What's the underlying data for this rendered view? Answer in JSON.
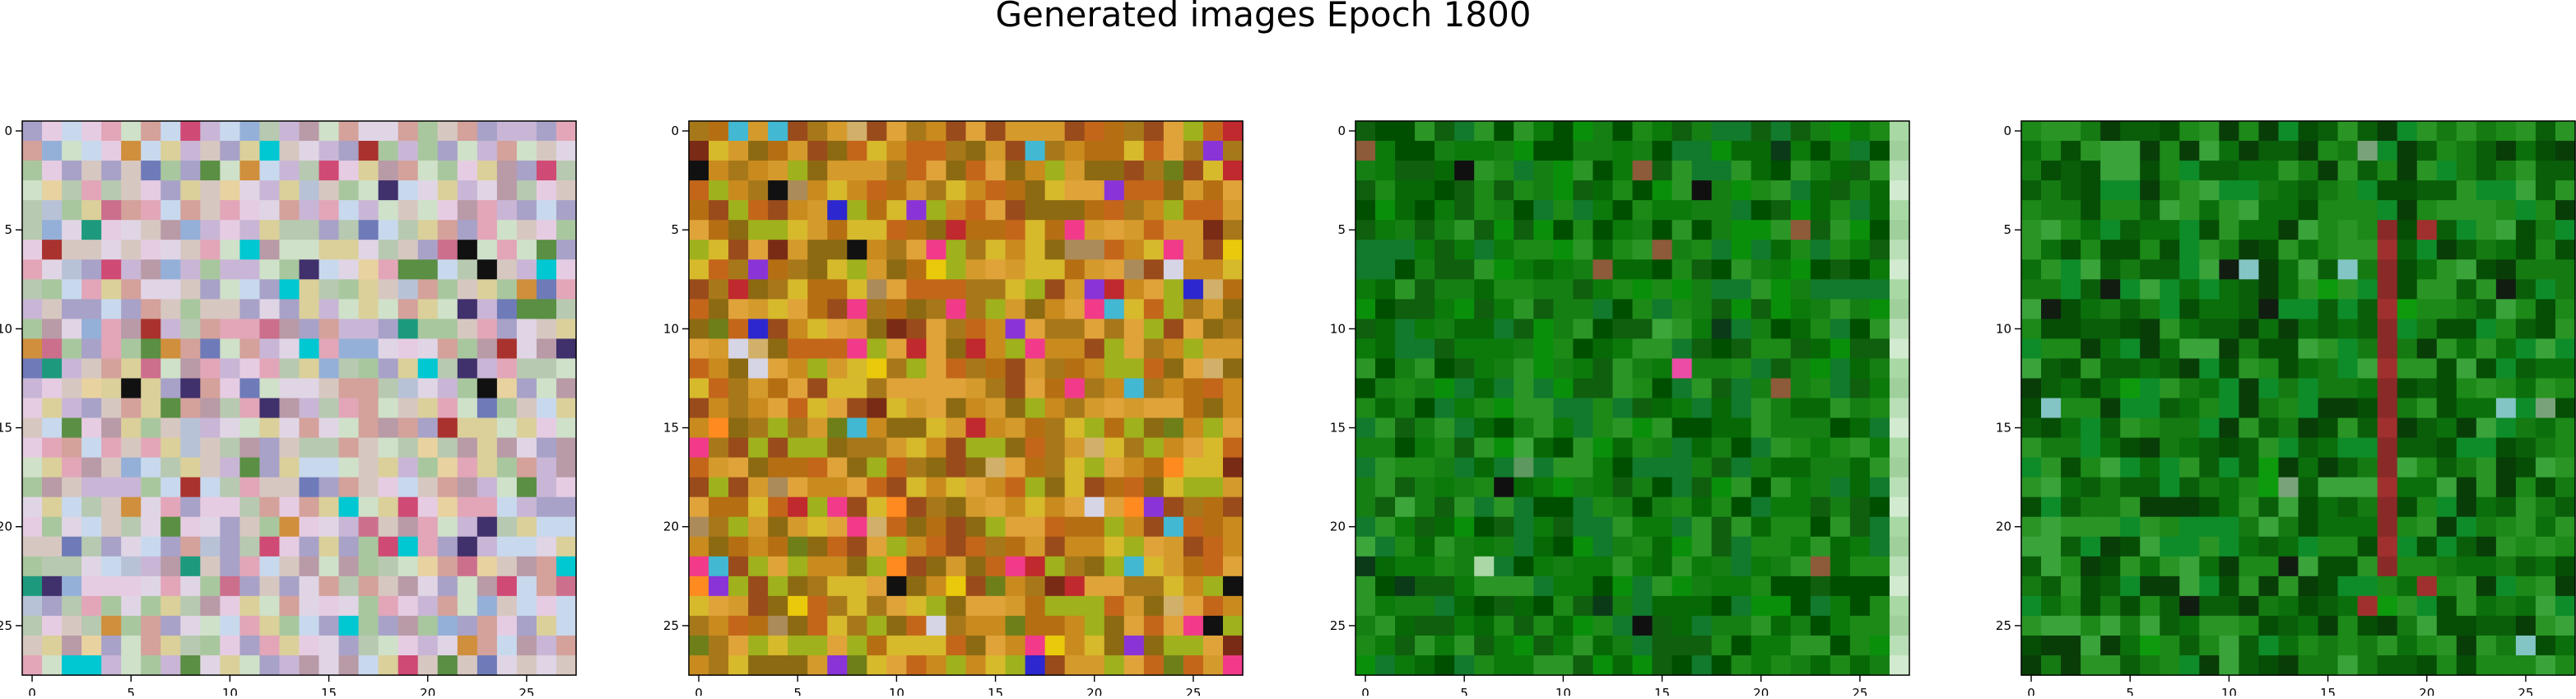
{
  "figure": {
    "title": "Generated images Epoch 1800"
  },
  "chart_data": {
    "type": "heatmap",
    "title": "Generated images Epoch 1800",
    "grid": false,
    "panels": [
      {
        "rows": 28,
        "cols": 28,
        "xlim": [
          -0.5,
          27.5
        ],
        "ylim": [
          27.5,
          -0.5
        ],
        "xticks": [
          0,
          5,
          10,
          15,
          20,
          25
        ],
        "yticks": [
          0,
          5,
          10,
          15,
          20,
          25
        ],
        "palette": [
          "#c9b6d6",
          "#b7c9b0",
          "#d7c7c1",
          "#e6cce2",
          "#a8a2c8",
          "#cfe1c9",
          "#e0d5e5",
          "#b99aa7",
          "#d4a19b",
          "#c8d9ee",
          "#a9c79e",
          "#dbd09a",
          "#e2a6b8",
          "#bdbcc5",
          "#f0e7e3",
          "#b8c2d7",
          "#cc6f8d",
          "#6f7bb8",
          "#d08f3c",
          "#a9322e",
          "#5a8f44",
          "#40306b",
          "#e8d2a0",
          "#cf4a74",
          "#1d9a7d",
          "#95b0d8",
          "#00c8d2",
          "#111111"
        ],
        "dominant": "pastel"
      },
      {
        "rows": 28,
        "cols": 28,
        "xlim": [
          -0.5,
          27.5
        ],
        "ylim": [
          27.5,
          -0.5
        ],
        "xticks": [
          0,
          5,
          10,
          15,
          20,
          25
        ],
        "yticks": [
          0,
          5,
          10,
          15,
          20,
          25
        ],
        "palette": [
          "#c98a1e",
          "#a7781a",
          "#d59a2c",
          "#b56f12",
          "#8c6a12",
          "#9fb11c",
          "#d7b92c",
          "#e0a33a",
          "#c4661a",
          "#9a4b1b",
          "#b1921d",
          "#d1b06a",
          "#c0292e",
          "#7a2b16",
          "#e9c90b",
          "#2c27ce",
          "#111111",
          "#f13b8a",
          "#8a34d8",
          "#ab8b59",
          "#6e7f1a",
          "#ff8a1f",
          "#42b8d2",
          "#d5d5e6"
        ],
        "dominant": "ochre"
      },
      {
        "rows": 28,
        "cols": 28,
        "xlim": [
          -0.5,
          27.5
        ],
        "ylim": [
          27.5,
          -0.5
        ],
        "xticks": [
          0,
          5,
          10,
          15,
          20,
          25
        ],
        "yticks": [
          0,
          5,
          10,
          15,
          20,
          25
        ],
        "palette": [
          "#0b7a0b",
          "#167f14",
          "#066906",
          "#1d8a18",
          "#0f5f0e",
          "#2b9626",
          "#004f00",
          "#117a2c",
          "#0a8f0a",
          "#3ca63a",
          "#0a3a18",
          "#5c9860",
          "#ec4ba6",
          "#101010",
          "#4a9a6a",
          "#8d5a3a",
          "#aad7a5"
        ],
        "dominant": "green"
      },
      {
        "rows": 28,
        "cols": 28,
        "xlim": [
          -0.5,
          27.5
        ],
        "ylim": [
          27.5,
          -0.5
        ],
        "xticks": [
          0,
          5,
          10,
          15,
          20,
          25
        ],
        "yticks": [
          0,
          5,
          10,
          15,
          20,
          25
        ],
        "palette": [
          "#0b6f0b",
          "#157a12",
          "#0a5e0a",
          "#1c8918",
          "#064e06",
          "#2a9524",
          "#083d08",
          "#0e8c2a",
          "#3aa33a",
          "#0d9b0d",
          "#111d11",
          "#7aa27a",
          "#a0302e",
          "#83c4c4"
        ],
        "dominant": "green"
      }
    ]
  }
}
